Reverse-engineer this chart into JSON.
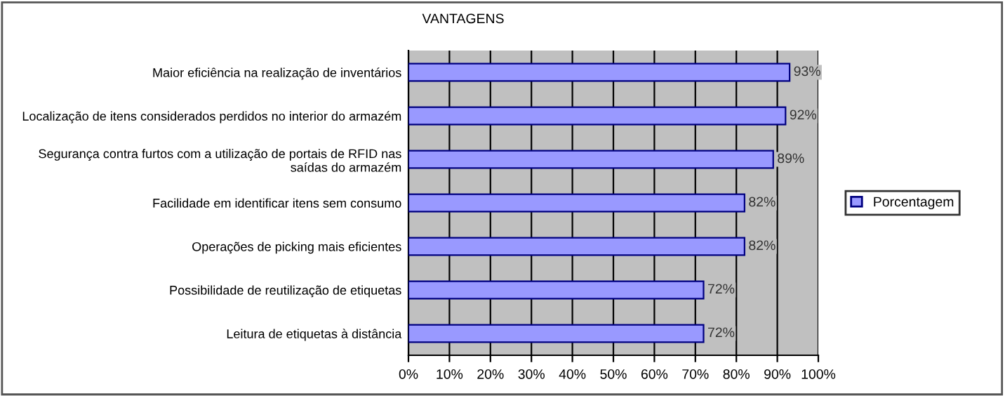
{
  "chart_data": {
    "type": "bar",
    "orientation": "horizontal",
    "title": "VANTAGENS",
    "categories": [
      "Maior eficiência na realização de inventários",
      "Localização de itens considerados perdidos no interior do armazém",
      "Segurança contra furtos com a utilização de portais de RFID nas saídas do armazém",
      "Facilidade em identificar itens sem consumo",
      "Operações de picking mais eficientes",
      "Possibilidade de reutilização de etiquetas",
      "Leitura de etiquetas à distância"
    ],
    "series": [
      {
        "name": "Porcentagem",
        "color": "#9999ff",
        "values": [
          93,
          92,
          89,
          82,
          82,
          72,
          72
        ]
      }
    ],
    "xlim": [
      0,
      100
    ],
    "xticks": [
      {
        "value": 0,
        "label": "0%"
      },
      {
        "value": 10,
        "label": "10%"
      },
      {
        "value": 20,
        "label": "20%"
      },
      {
        "value": 30,
        "label": "30%"
      },
      {
        "value": 40,
        "label": "40%"
      },
      {
        "value": 50,
        "label": "50%"
      },
      {
        "value": 60,
        "label": "60%"
      },
      {
        "value": 70,
        "label": "70%"
      },
      {
        "value": 80,
        "label": "80%"
      },
      {
        "value": 90,
        "label": "90%"
      },
      {
        "value": 100,
        "label": "100%"
      }
    ],
    "value_labels": [
      "93%",
      "92%",
      "89%",
      "82%",
      "82%",
      "72%",
      "72%"
    ],
    "grid": "x",
    "legend": "right"
  }
}
